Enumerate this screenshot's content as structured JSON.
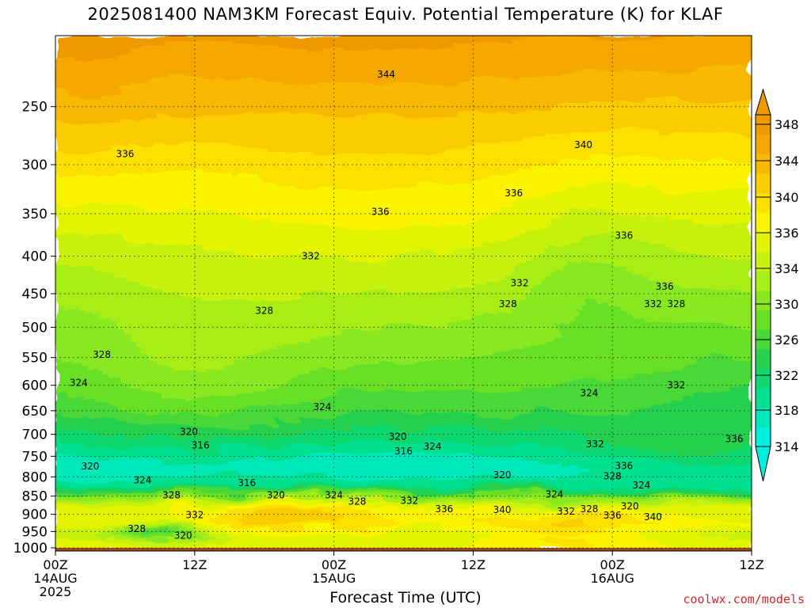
{
  "chart_data": {
    "type": "heatmap",
    "title": "2025081400 NAM3KM Forecast Equiv. Potential Temperature (K) for KLAF",
    "xlabel": "Forecast Time (UTC)",
    "ylabel": "",
    "x_ticks": [
      {
        "hours": 0,
        "label": "00Z",
        "sub": [
          "14AUG",
          "2025"
        ]
      },
      {
        "hours": 12,
        "label": "12Z",
        "sub": []
      },
      {
        "hours": 24,
        "label": "00Z",
        "sub": [
          "15AUG"
        ]
      },
      {
        "hours": 36,
        "label": "12Z",
        "sub": []
      },
      {
        "hours": 48,
        "label": "00Z",
        "sub": [
          "16AUG"
        ]
      },
      {
        "hours": 60,
        "label": "12Z",
        "sub": []
      }
    ],
    "xlim": [
      0,
      60
    ],
    "y_ticks": [
      250,
      300,
      350,
      400,
      450,
      500,
      550,
      600,
      650,
      700,
      750,
      800,
      850,
      900,
      950,
      1000
    ],
    "ylim": [
      200,
      1010
    ],
    "y_scale": "log",
    "grid": true,
    "legend": "right",
    "colorbar": {
      "ticks": [
        314,
        318,
        322,
        326,
        330,
        334,
        336,
        340,
        344,
        348
      ],
      "levels": [
        314,
        316,
        318,
        320,
        322,
        324,
        326,
        328,
        330,
        332,
        334,
        336,
        338,
        340,
        342,
        344,
        346,
        348
      ],
      "range": [
        314,
        348
      ],
      "colors": [
        "#00f0e0",
        "#00e8b8",
        "#00e090",
        "#10d870",
        "#28d050",
        "#48d838",
        "#68e028",
        "#88e820",
        "#a8ee18",
        "#c8f210",
        "#e2f406",
        "#fbf400",
        "#fce000",
        "#fbcc00",
        "#f8b800",
        "#f4a800",
        "#f09800"
      ]
    },
    "contour_labels": [
      {
        "hours": 28.5,
        "p": 226,
        "v": "344"
      },
      {
        "hours": 45.5,
        "p": 282,
        "v": "340"
      },
      {
        "hours": 6.0,
        "p": 290,
        "v": "336"
      },
      {
        "hours": 39.5,
        "p": 328,
        "v": "336"
      },
      {
        "hours": 28.0,
        "p": 348,
        "v": "336"
      },
      {
        "hours": 49.0,
        "p": 375,
        "v": "336"
      },
      {
        "hours": 22.0,
        "p": 400,
        "v": "332"
      },
      {
        "hours": 40.0,
        "p": 435,
        "v": "332"
      },
      {
        "hours": 52.5,
        "p": 440,
        "v": "336"
      },
      {
        "hours": 51.5,
        "p": 465,
        "v": "332"
      },
      {
        "hours": 53.5,
        "p": 465,
        "v": "328"
      },
      {
        "hours": 18.0,
        "p": 475,
        "v": "328"
      },
      {
        "hours": 39.0,
        "p": 465,
        "v": "328"
      },
      {
        "hours": 4.0,
        "p": 545,
        "v": "328"
      },
      {
        "hours": 2.0,
        "p": 595,
        "v": "324"
      },
      {
        "hours": 53.5,
        "p": 600,
        "v": "332"
      },
      {
        "hours": 46.0,
        "p": 615,
        "v": "324"
      },
      {
        "hours": 23.0,
        "p": 642,
        "v": "324"
      },
      {
        "hours": 11.5,
        "p": 695,
        "v": "320"
      },
      {
        "hours": 29.5,
        "p": 705,
        "v": "320"
      },
      {
        "hours": 32.5,
        "p": 727,
        "v": "324"
      },
      {
        "hours": 58.5,
        "p": 710,
        "v": "336"
      },
      {
        "hours": 12.5,
        "p": 725,
        "v": "316"
      },
      {
        "hours": 30.0,
        "p": 738,
        "v": "316"
      },
      {
        "hours": 46.5,
        "p": 722,
        "v": "332"
      },
      {
        "hours": 3.0,
        "p": 774,
        "v": "320"
      },
      {
        "hours": 49.0,
        "p": 773,
        "v": "336"
      },
      {
        "hours": 7.5,
        "p": 808,
        "v": "324"
      },
      {
        "hours": 16.5,
        "p": 815,
        "v": "316"
      },
      {
        "hours": 38.5,
        "p": 795,
        "v": "320"
      },
      {
        "hours": 48.0,
        "p": 798,
        "v": "328"
      },
      {
        "hours": 50.5,
        "p": 822,
        "v": "324"
      },
      {
        "hours": 10.0,
        "p": 848,
        "v": "328"
      },
      {
        "hours": 19.0,
        "p": 848,
        "v": "320"
      },
      {
        "hours": 24.0,
        "p": 848,
        "v": "324"
      },
      {
        "hours": 26.0,
        "p": 865,
        "v": "328"
      },
      {
        "hours": 30.5,
        "p": 862,
        "v": "332"
      },
      {
        "hours": 33.5,
        "p": 885,
        "v": "336"
      },
      {
        "hours": 43.0,
        "p": 845,
        "v": "324"
      },
      {
        "hours": 38.5,
        "p": 888,
        "v": "340"
      },
      {
        "hours": 44.0,
        "p": 892,
        "v": "332"
      },
      {
        "hours": 46.0,
        "p": 885,
        "v": "328"
      },
      {
        "hours": 49.5,
        "p": 878,
        "v": "320"
      },
      {
        "hours": 48.0,
        "p": 903,
        "v": "336"
      },
      {
        "hours": 51.5,
        "p": 907,
        "v": "340"
      },
      {
        "hours": 12.0,
        "p": 902,
        "v": "332"
      },
      {
        "hours": 7.0,
        "p": 942,
        "v": "328"
      },
      {
        "hours": 11.0,
        "p": 962,
        "v": "320"
      }
    ]
  },
  "credit": "coolwx.com/models"
}
